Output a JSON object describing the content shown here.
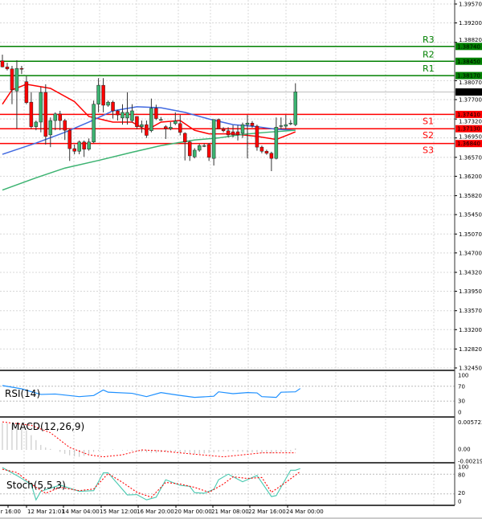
{
  "chart_data": [
    {
      "type": "candlestick",
      "panel": "price",
      "y_ticks": [
        "1.39570",
        "1.39200",
        "1.38820",
        "1.38070",
        "1.37700",
        "1.37320",
        "1.36950",
        "1.36570",
        "1.36200",
        "1.35820",
        "1.35450",
        "1.35070",
        "1.34700",
        "1.34320",
        "1.33950",
        "1.33570",
        "1.33200",
        "1.32820",
        "1.32450"
      ],
      "ylim": [
        1.3245,
        1.3957
      ],
      "grid": true,
      "x_tick_labels": [
        "r 16:00",
        "12 Mar 21:01",
        "14 Mar 04:00",
        "15 Mar 12:00",
        "16 Mar 20:00",
        "20 Mar 00:00",
        "21 Mar 08:00",
        "22 Mar 16:00",
        "24 Mar 00:00"
      ],
      "candles_ohlc": [
        [
          1.3846,
          1.3858,
          1.3833,
          1.3834
        ],
        [
          1.3834,
          1.3842,
          1.3827,
          1.383
        ],
        [
          1.383,
          1.3836,
          1.3761,
          1.3789
        ],
        [
          1.3787,
          1.3847,
          1.3713,
          1.3831
        ],
        [
          1.3831,
          1.3836,
          1.382,
          1.383
        ],
        [
          1.3805,
          1.3816,
          1.3761,
          1.3764
        ],
        [
          1.3765,
          1.3784,
          1.3713,
          1.3717
        ],
        [
          1.3717,
          1.3729,
          1.371,
          1.3726
        ],
        [
          1.3726,
          1.3795,
          1.3706,
          1.3784
        ],
        [
          1.3784,
          1.38,
          1.3682,
          1.3698
        ],
        [
          1.3701,
          1.3735,
          1.3677,
          1.3729
        ],
        [
          1.3729,
          1.3745,
          1.371,
          1.3742
        ],
        [
          1.3742,
          1.3748,
          1.371,
          1.3729
        ],
        [
          1.3729,
          1.3732,
          1.3691,
          1.371
        ],
        [
          1.371,
          1.3713,
          1.365,
          1.3674
        ],
        [
          1.3674,
          1.3682,
          1.3663,
          1.3669
        ],
        [
          1.3669,
          1.369,
          1.3663,
          1.3687
        ],
        [
          1.3687,
          1.369,
          1.3658,
          1.3673
        ],
        [
          1.3673,
          1.3694,
          1.367,
          1.3687
        ],
        [
          1.3687,
          1.3768,
          1.3685,
          1.3761
        ],
        [
          1.3761,
          1.3812,
          1.3745,
          1.3798
        ],
        [
          1.3798,
          1.3812,
          1.3745,
          1.3759
        ],
        [
          1.3759,
          1.3768,
          1.3756,
          1.3765
        ],
        [
          1.3765,
          1.3768,
          1.3733,
          1.3748
        ],
        [
          1.3748,
          1.375,
          1.3729,
          1.374
        ],
        [
          1.3734,
          1.3761,
          1.3721,
          1.3745
        ],
        [
          1.3734,
          1.3784,
          1.3721,
          1.3745
        ],
        [
          1.3729,
          1.3761,
          1.3725,
          1.3748
        ],
        [
          1.3737,
          1.3737,
          1.3713,
          1.3717
        ],
        [
          1.3717,
          1.3729,
          1.3705,
          1.3721
        ],
        [
          1.3721,
          1.3729,
          1.3695,
          1.37
        ],
        [
          1.3709,
          1.3772,
          1.3706,
          1.3753
        ],
        [
          1.3753,
          1.376,
          1.373,
          1.3733
        ],
        [
          1.3731,
          1.3736,
          1.3728,
          1.3731
        ],
        [
          1.3717,
          1.372,
          1.3693,
          1.3713
        ],
        [
          1.3713,
          1.3726,
          1.371,
          1.3716
        ],
        [
          1.3723,
          1.3745,
          1.372,
          1.3728
        ],
        [
          1.3723,
          1.374,
          1.37,
          1.3706
        ],
        [
          1.3704,
          1.3706,
          1.3651,
          1.3687
        ],
        [
          1.3687,
          1.369,
          1.365,
          1.366
        ],
        [
          1.3658,
          1.3675,
          1.3655,
          1.3671
        ],
        [
          1.3671,
          1.3683,
          1.3668,
          1.368
        ],
        [
          1.368,
          1.3684,
          1.3677,
          1.368
        ],
        [
          1.3682,
          1.3685,
          1.365,
          1.3657
        ],
        [
          1.3655,
          1.3731,
          1.3641,
          1.3731
        ],
        [
          1.3731,
          1.3733,
          1.3713,
          1.3713
        ],
        [
          1.3713,
          1.3716,
          1.3706,
          1.3709
        ],
        [
          1.3709,
          1.3716,
          1.3696,
          1.3701
        ],
        [
          1.3707,
          1.372,
          1.3696,
          1.3701
        ],
        [
          1.3707,
          1.372,
          1.369,
          1.3701
        ],
        [
          1.3704,
          1.3725,
          1.3695,
          1.3721
        ],
        [
          1.3721,
          1.374,
          1.3655,
          1.3724
        ],
        [
          1.3724,
          1.3728,
          1.3715,
          1.3719
        ],
        [
          1.3718,
          1.3721,
          1.367,
          1.3677
        ],
        [
          1.3677,
          1.368,
          1.3665,
          1.3669
        ],
        [
          1.3669,
          1.3672,
          1.3662,
          1.3665
        ],
        [
          1.3665,
          1.3668,
          1.363,
          1.3655
        ],
        [
          1.3655,
          1.3735,
          1.3653,
          1.3716
        ],
        [
          1.3718,
          1.3735,
          1.3712,
          1.3719
        ],
        [
          1.3718,
          1.374,
          1.3712,
          1.3721
        ],
        [
          1.3724,
          1.373,
          1.372,
          1.3724
        ],
        [
          1.3721,
          1.3802,
          1.3718,
          1.3785
        ]
      ],
      "moving_averages": [
        {
          "color": "#ff0000",
          "points": [
            [
              0,
              1.3761
            ],
            [
              2,
              1.3789
            ],
            [
              5,
              1.38
            ],
            [
              10,
              1.3792
            ],
            [
              15,
              1.3766
            ],
            [
              18,
              1.3737
            ],
            [
              23,
              1.3726
            ],
            [
              27,
              1.3726
            ],
            [
              30,
              1.371
            ],
            [
              33,
              1.3726
            ],
            [
              37,
              1.3729
            ],
            [
              40,
              1.371
            ],
            [
              43,
              1.3703
            ],
            [
              48,
              1.3703
            ],
            [
              53,
              1.3698
            ],
            [
              57,
              1.3692
            ],
            [
              60,
              1.3703
            ],
            [
              61,
              1.3707
            ]
          ]
        },
        {
          "color": "#4169e1",
          "points": [
            [
              0,
              1.3663
            ],
            [
              7,
              1.3685
            ],
            [
              13,
              1.3706
            ],
            [
              18,
              1.3726
            ],
            [
              23,
              1.3748
            ],
            [
              28,
              1.3756
            ],
            [
              33,
              1.3754
            ],
            [
              38,
              1.3745
            ],
            [
              43,
              1.3732
            ],
            [
              48,
              1.3721
            ],
            [
              53,
              1.3717
            ],
            [
              57,
              1.3712
            ],
            [
              61,
              1.371
            ]
          ]
        },
        {
          "color": "#3cb371",
          "points": [
            [
              0,
              1.3593
            ],
            [
              7,
              1.3617
            ],
            [
              13,
              1.3636
            ],
            [
              20,
              1.3651
            ],
            [
              27,
              1.3667
            ],
            [
              33,
              1.368
            ],
            [
              40,
              1.3691
            ],
            [
              45,
              1.3695
            ],
            [
              50,
              1.3702
            ],
            [
              55,
              1.3706
            ],
            [
              61,
              1.371
            ]
          ]
        }
      ],
      "levels": [
        {
          "name": "R3",
          "value": "1.38740",
          "color": "#008000"
        },
        {
          "name": "R2",
          "value": "1.38450",
          "color": "#008000"
        },
        {
          "name": "R1",
          "value": "1.38170",
          "color": "#008000"
        },
        {
          "name": "S1",
          "value": "1.37410",
          "color": "#ff0000"
        },
        {
          "name": "S2",
          "value": "1.37130",
          "color": "#ff0000"
        },
        {
          "name": "S3",
          "value": "1.36840",
          "color": "#ff0000"
        }
      ],
      "current_price": "1.37849",
      "up_color": "#3cb371",
      "down_color": "#ff0000"
    },
    {
      "type": "line",
      "panel": "rsi",
      "title": "RSI(14)",
      "y_ticks": [
        "100",
        "70",
        "30",
        "0"
      ],
      "ylim": [
        0,
        100
      ],
      "color": "#1e90ff",
      "points": [
        [
          0,
          72
        ],
        [
          4,
          63
        ],
        [
          8,
          48
        ],
        [
          11,
          49
        ],
        [
          16,
          42
        ],
        [
          19,
          45
        ],
        [
          21,
          60
        ],
        [
          22,
          54
        ],
        [
          27,
          51
        ],
        [
          30,
          42
        ],
        [
          33,
          53
        ],
        [
          36,
          47
        ],
        [
          40,
          40
        ],
        [
          44,
          43
        ],
        [
          45,
          55
        ],
        [
          48,
          50
        ],
        [
          51,
          53
        ],
        [
          53,
          52
        ],
        [
          54,
          42
        ],
        [
          57,
          40
        ],
        [
          58,
          54
        ],
        [
          61,
          55
        ],
        [
          62,
          64
        ]
      ]
    },
    {
      "type": "bar+line",
      "panel": "macd",
      "title": "MACD(12,26,9)",
      "y_ticks": [
        "0.005723",
        "0.00",
        "-0.002191"
      ],
      "ylim": [
        -0.002191,
        0.005723
      ],
      "histogram_color": "#c0c0c0",
      "signal_color": "#ff0000",
      "histogram": [
        0.0055,
        0.0054,
        0.0052,
        0.005,
        0.0046,
        0.004,
        0.003,
        0.002,
        0.001,
        0.0005,
        0.0002,
        0,
        -0.0004,
        -0.0008,
        -0.0011,
        -0.0013,
        -0.0014,
        -0.0012,
        -0.0008,
        -0.0004,
        -0.0002,
        -0.0001,
        0,
        0.0001,
        0,
        -0.0001,
        -0.0001,
        -0.0002,
        -0.0003,
        -0.0004,
        -0.0005,
        -0.0006,
        -0.0006,
        -0.0005,
        -0.0004,
        -0.0003,
        -0.0004,
        -0.0005,
        -0.0006,
        -0.0007,
        -0.0008,
        -0.0008,
        -0.0007,
        -0.0006,
        -0.0005,
        -0.0004,
        -0.0003,
        -0.0003,
        -0.0003,
        -0.0004,
        -0.0004,
        -0.0005,
        -0.0005,
        -0.0005,
        -0.0006,
        -0.0007,
        -0.0007,
        -0.0005,
        -0.0004,
        -0.0004,
        -0.0003,
        0.0003
      ],
      "signal": [
        [
          0,
          0.0057
        ],
        [
          6,
          0.005
        ],
        [
          10,
          0.0035
        ],
        [
          14,
          0.0005
        ],
        [
          18,
          -0.001
        ],
        [
          21,
          -0.0014
        ],
        [
          25,
          -0.001
        ],
        [
          29,
          0
        ],
        [
          33,
          -0.0002
        ],
        [
          38,
          -0.0007
        ],
        [
          46,
          -0.0014
        ],
        [
          50,
          -0.001
        ],
        [
          54,
          -0.0006
        ],
        [
          61,
          -0.0006
        ]
      ]
    },
    {
      "type": "line",
      "panel": "stochastic",
      "title": "Stoch(5,5,3)",
      "y_ticks": [
        "100",
        "80",
        "20",
        "0"
      ],
      "ylim": [
        0,
        100
      ],
      "series": [
        {
          "color": "#48c9b0",
          "points": [
            [
              0,
              100
            ],
            [
              3,
              76
            ],
            [
              6,
              49
            ],
            [
              7,
              2
            ],
            [
              8,
              28
            ],
            [
              12,
              47
            ],
            [
              16,
              28
            ],
            [
              19,
              30
            ],
            [
              21,
              84
            ],
            [
              22,
              84
            ],
            [
              26,
              17
            ],
            [
              28,
              18
            ],
            [
              30,
              2
            ],
            [
              32,
              10
            ],
            [
              34,
              63
            ],
            [
              37,
              46
            ],
            [
              39,
              43
            ],
            [
              40,
              24
            ],
            [
              42,
              22
            ],
            [
              44,
              34
            ],
            [
              45,
              63
            ],
            [
              47,
              80
            ],
            [
              50,
              57
            ],
            [
              53,
              76
            ],
            [
              56,
              12
            ],
            [
              57,
              15
            ],
            [
              60,
              92
            ],
            [
              61,
              92
            ],
            [
              62,
              97
            ]
          ]
        },
        {
          "color": "#ff0000",
          "points": [
            [
              0,
              95
            ],
            [
              3,
              85
            ],
            [
              7,
              40
            ],
            [
              9,
              22
            ],
            [
              12,
              40
            ],
            [
              16,
              30
            ],
            [
              19,
              35
            ],
            [
              22,
              82
            ],
            [
              25,
              55
            ],
            [
              28,
              25
            ],
            [
              31,
              10
            ],
            [
              34,
              55
            ],
            [
              37,
              50
            ],
            [
              40,
              40
            ],
            [
              43,
              25
            ],
            [
              46,
              50
            ],
            [
              48,
              72
            ],
            [
              51,
              67
            ],
            [
              54,
              70
            ],
            [
              56,
              25
            ],
            [
              59,
              55
            ],
            [
              62,
              88
            ]
          ]
        }
      ]
    }
  ]
}
